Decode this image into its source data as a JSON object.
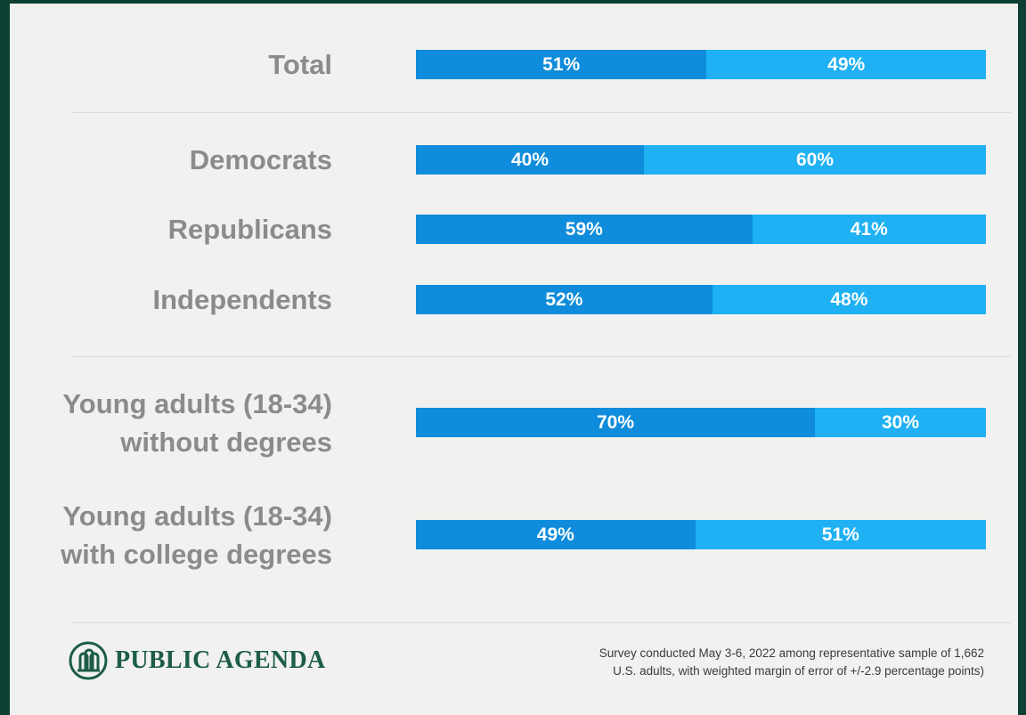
{
  "chart_data": {
    "type": "bar",
    "orientation": "horizontal",
    "stacked": true,
    "percent": true,
    "categories": [
      [
        "Total"
      ],
      [
        "Democrats"
      ],
      [
        "Republicans"
      ],
      [
        "Independents"
      ],
      [
        "Young adults (18-34)",
        "without degrees"
      ],
      [
        "Young adults (18-34)",
        "with college degrees"
      ]
    ],
    "series": [
      {
        "values": [
          51,
          40,
          59,
          52,
          70,
          49
        ],
        "labels": [
          "51%",
          "40%",
          "59%",
          "52%",
          "70%",
          "49%"
        ],
        "color": "#0f8cdb"
      },
      {
        "values": [
          49,
          60,
          41,
          48,
          30,
          51
        ],
        "labels": [
          "49%",
          "60%",
          "41%",
          "48%",
          "30%",
          "51%"
        ],
        "color": "#1fb1f3"
      }
    ],
    "groups": [
      [
        0
      ],
      [
        1,
        2,
        3
      ],
      [
        4,
        5
      ]
    ],
    "legend": "none",
    "grid": false
  },
  "logo": {
    "text": "PUBLIC AGENDA",
    "icon": "public-agenda-logo-icon",
    "color": "#1c5c49"
  },
  "footnote": {
    "line1": "Survey conducted May 3-6, 2022 among representative sample of 1,662",
    "line2": "U.S. adults, with weighted margin of error of +/-2.9 percentage points)"
  },
  "colors": {
    "background": "#0d3f33",
    "card": "#f1f1f0",
    "label": "#8b8b8b"
  }
}
